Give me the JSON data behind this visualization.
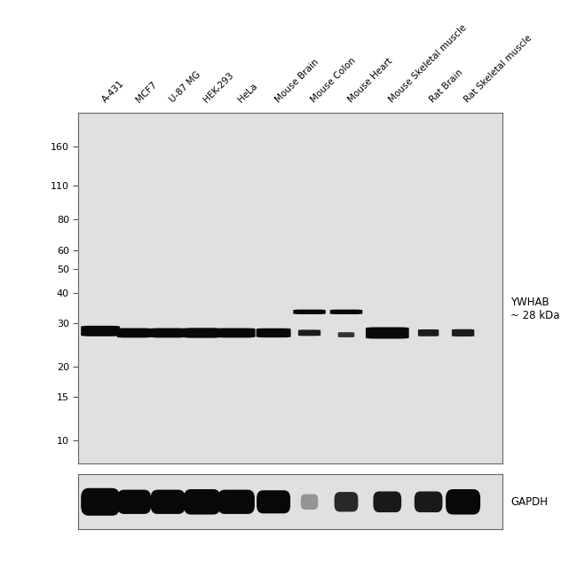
{
  "lane_labels": [
    "A-431",
    "MCF7",
    "U-87 MG",
    "HEK-293",
    "HeLa",
    "Mouse Brain",
    "Mouse Colon",
    "Mouse Heart",
    "Mouse Skeletal muscle",
    "Rat Brain",
    "Rat Skeletal muscle"
  ],
  "mw_markers": [
    160,
    110,
    80,
    60,
    50,
    40,
    30,
    20,
    15,
    10
  ],
  "annotation_text": "YWHAB\n~ 28 kDa",
  "gapdh_label": "GAPDH",
  "bg_color": "#e0e0e0",
  "band_color": "#080808",
  "white_bg": "#ffffff",
  "main_bands": [
    [
      0.52,
      28.0,
      0.9,
      2.8,
      1.0
    ],
    [
      1.3,
      27.5,
      0.8,
      2.5,
      1.0
    ],
    [
      2.08,
      27.5,
      0.82,
      2.5,
      1.0
    ],
    [
      2.87,
      27.5,
      0.88,
      2.6,
      1.0
    ],
    [
      3.66,
      27.5,
      0.88,
      2.5,
      1.0
    ],
    [
      4.52,
      27.5,
      0.8,
      2.4,
      1.0
    ],
    [
      5.35,
      27.5,
      0.52,
      1.6,
      0.9
    ],
    [
      6.2,
      27.0,
      0.38,
      1.3,
      0.8
    ],
    [
      7.15,
      27.5,
      1.0,
      3.0,
      1.0
    ],
    [
      8.1,
      27.5,
      0.48,
      1.8,
      0.9
    ],
    [
      8.9,
      27.5,
      0.52,
      1.9,
      0.9
    ]
  ],
  "upper_bands": [
    [
      5.35,
      33.5,
      0.75,
      1.5,
      1.0
    ],
    [
      6.2,
      33.5,
      0.75,
      1.5,
      1.0
    ]
  ],
  "gapdh_bands": [
    [
      0.52,
      0.5,
      0.9,
      0.5,
      1.0
    ],
    [
      1.3,
      0.5,
      0.78,
      0.44,
      1.0
    ],
    [
      2.08,
      0.5,
      0.8,
      0.44,
      1.0
    ],
    [
      2.87,
      0.5,
      0.85,
      0.46,
      1.0
    ],
    [
      3.66,
      0.5,
      0.85,
      0.44,
      1.0
    ],
    [
      4.52,
      0.5,
      0.78,
      0.42,
      1.0
    ],
    [
      5.35,
      0.5,
      0.4,
      0.28,
      0.35
    ],
    [
      6.2,
      0.5,
      0.55,
      0.36,
      0.85
    ],
    [
      7.15,
      0.5,
      0.65,
      0.38,
      0.92
    ],
    [
      8.1,
      0.5,
      0.65,
      0.38,
      0.92
    ],
    [
      8.9,
      0.5,
      0.8,
      0.46,
      1.0
    ]
  ],
  "xlim": [
    0,
    9.8
  ],
  "ylim_log_min": 8,
  "ylim_log_max": 220
}
